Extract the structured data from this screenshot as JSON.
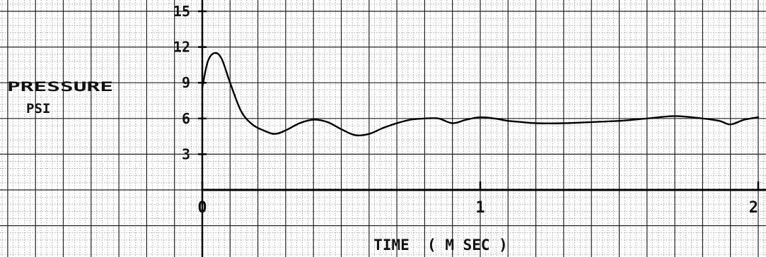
{
  "chart_data": {
    "type": "line",
    "title": "",
    "ylabel_line1": "PRESSURE",
    "ylabel_line2": "PSI",
    "xlabel": "TIME  ( M SEC )",
    "xlim": [
      0,
      2
    ],
    "ylim": [
      0,
      15
    ],
    "x_ticks": [
      {
        "value": 0,
        "label": "0"
      },
      {
        "value": 1,
        "label": "1"
      },
      {
        "value": 2,
        "label": "2"
      }
    ],
    "y_ticks": [
      {
        "value": 3,
        "label": "3"
      },
      {
        "value": 6,
        "label": "6"
      },
      {
        "value": 9,
        "label": "9"
      },
      {
        "value": 12,
        "label": "12"
      },
      {
        "value": 15,
        "label": "15"
      }
    ],
    "grid": true,
    "series": [
      {
        "x": [
          0,
          0.02,
          0.045,
          0.07,
          0.1,
          0.14,
          0.18,
          0.22,
          0.26,
          0.3,
          0.35,
          0.4,
          0.45,
          0.5,
          0.55,
          0.6,
          0.65,
          0.7,
          0.75,
          0.8,
          0.85,
          0.9,
          0.95,
          1.0,
          1.05,
          1.1,
          1.15,
          1.2,
          1.3,
          1.4,
          1.5,
          1.6,
          1.7,
          1.8,
          1.86,
          1.9,
          1.95,
          2.0
        ],
        "y": [
          8.6,
          10.8,
          11.5,
          11.0,
          9.0,
          6.6,
          5.5,
          5.0,
          4.7,
          5.0,
          5.6,
          5.9,
          5.7,
          5.1,
          4.6,
          4.7,
          5.2,
          5.6,
          5.9,
          6.0,
          6.0,
          5.6,
          5.9,
          6.1,
          6.0,
          5.8,
          5.7,
          5.6,
          5.6,
          5.7,
          5.8,
          6.0,
          6.2,
          6.0,
          5.8,
          5.5,
          5.9,
          6.1
        ]
      }
    ]
  }
}
